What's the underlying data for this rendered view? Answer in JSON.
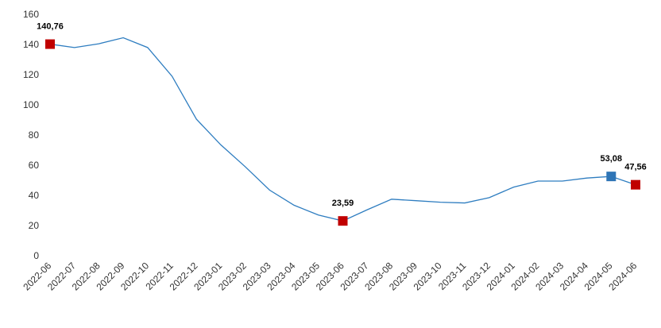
{
  "chart_data": {
    "type": "line",
    "x": [
      "2022-06",
      "2022-07",
      "2022-08",
      "2022-09",
      "2022-10",
      "2022-11",
      "2022-12",
      "2023-01",
      "2023-02",
      "2023-03",
      "2023-04",
      "2023-05",
      "2023-06",
      "2023-07",
      "2023-08",
      "2023-09",
      "2023-10",
      "2023-11",
      "2023-12",
      "2024-01",
      "2024-02",
      "2024-03",
      "2024-04",
      "2024-05",
      "2024-06"
    ],
    "series": [
      {
        "color": "#2e7dc0",
        "values": [
          140.76,
          138.5,
          141,
          145,
          138.5,
          119.5,
          91,
          74,
          59.5,
          44,
          34,
          27.5,
          23.59,
          31,
          38,
          37,
          36,
          35.5,
          39,
          46,
          50,
          50,
          52,
          53.08,
          47.56
        ],
        "value_labels": [
          "140,76",
          null,
          null,
          null,
          null,
          null,
          null,
          null,
          null,
          null,
          null,
          null,
          "23,59",
          null,
          null,
          null,
          null,
          null,
          null,
          null,
          null,
          null,
          null,
          "53,08",
          "47,56"
        ],
        "marker_colors": [
          "#c00000",
          null,
          null,
          null,
          null,
          null,
          null,
          null,
          null,
          null,
          null,
          null,
          "#c00000",
          null,
          null,
          null,
          null,
          null,
          null,
          null,
          null,
          null,
          null,
          "#2e75b6",
          "#c00000"
        ]
      }
    ],
    "ylim": [
      0,
      160
    ],
    "yticks": [
      0,
      20,
      40,
      60,
      80,
      100,
      120,
      140,
      160
    ],
    "grid": false
  }
}
